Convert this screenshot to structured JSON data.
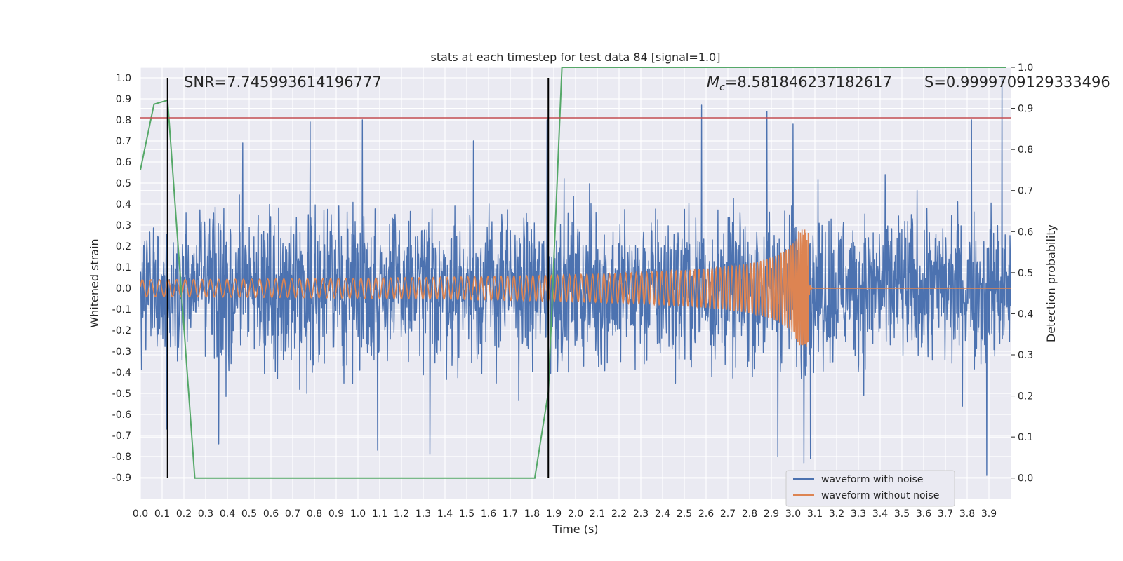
{
  "chart_data": {
    "type": "line",
    "title": "stats at each timestep for test data 84 [signal=1.0]",
    "xlabel": "Time (s)",
    "ylabel": "Whitened strain",
    "y2label": "Detection probability",
    "xlim": [
      0.0,
      4.0
    ],
    "ylim": [
      -1.0,
      1.05
    ],
    "y2lim": [
      -0.05,
      1.0
    ],
    "grid": true,
    "xticks": [
      0.0,
      0.1,
      0.2,
      0.3,
      0.4,
      0.5,
      0.6,
      0.7,
      0.8,
      0.9,
      1.0,
      1.1,
      1.2,
      1.3,
      1.4,
      1.5,
      1.6,
      1.7,
      1.8,
      1.9,
      2.0,
      2.1,
      2.2,
      2.3,
      2.4,
      2.5,
      2.6,
      2.7,
      2.8,
      2.9,
      3.0,
      3.1,
      3.2,
      3.3,
      3.4,
      3.5,
      3.6,
      3.7,
      3.8,
      3.9
    ],
    "yticks": [
      1.0,
      0.9,
      0.8,
      0.7,
      0.6,
      0.5,
      0.4,
      0.3,
      0.2,
      0.1,
      0.0,
      -0.1,
      -0.2,
      -0.3,
      -0.4,
      -0.5,
      -0.6,
      -0.7,
      -0.8,
      -0.9
    ],
    "y2ticks": [
      1.0,
      0.9,
      0.8,
      0.7,
      0.6,
      0.5,
      0.4,
      0.3,
      0.2,
      0.1,
      0.0
    ],
    "annotations": {
      "snr": "SNR=7.745993614196777",
      "mc_symbol": "M",
      "mc_subscript": "c",
      "mc_value": "=8.581846237182617",
      "s_label": "S=0.9999709129333496"
    },
    "threshold_line": {
      "y": 0.81,
      "color": "#c44e52"
    },
    "vertical_lines": {
      "x": [
        0.125,
        1.875
      ],
      "color": "#000000"
    },
    "noise_envelope": {
      "typical_amplitude": 0.42,
      "peak_times": [
        0.12,
        0.47,
        0.78,
        1.02,
        1.53,
        1.87,
        2.58,
        2.88,
        3.0,
        3.08,
        3.82,
        3.96
      ],
      "peak_values": [
        0.8,
        0.69,
        0.79,
        0.8,
        0.7,
        0.8,
        0.87,
        0.84,
        0.78,
        0.84,
        0.8,
        1.0
      ],
      "trough_times": [
        0.12,
        0.36,
        1.09,
        1.33,
        2.93,
        3.05,
        3.08,
        3.89
      ],
      "trough_values": [
        -0.67,
        -0.74,
        -0.77,
        -0.79,
        -0.8,
        -0.83,
        -0.81,
        -0.89
      ]
    },
    "signal_waveform": {
      "merger_time": 3.07,
      "start_amplitude": 0.04,
      "peak_amplitude": 0.28,
      "start_frequency_hz": 25
    },
    "series": [
      {
        "name": "waveform with noise",
        "color": "#4c72b0",
        "axis": "left"
      },
      {
        "name": "waveform without noise",
        "color": "#dd8452",
        "axis": "left"
      },
      {
        "color": "#55a868",
        "axis": "right",
        "x": [
          0.0,
          0.0625,
          0.125,
          0.25,
          0.3125,
          1.8125,
          1.875,
          1.9375,
          3.98
        ],
        "values": [
          0.75,
          0.91,
          0.92,
          0.0,
          0.0,
          0.0,
          0.21,
          1.0,
          1.0
        ]
      }
    ],
    "legend_position": "bottom-right"
  }
}
